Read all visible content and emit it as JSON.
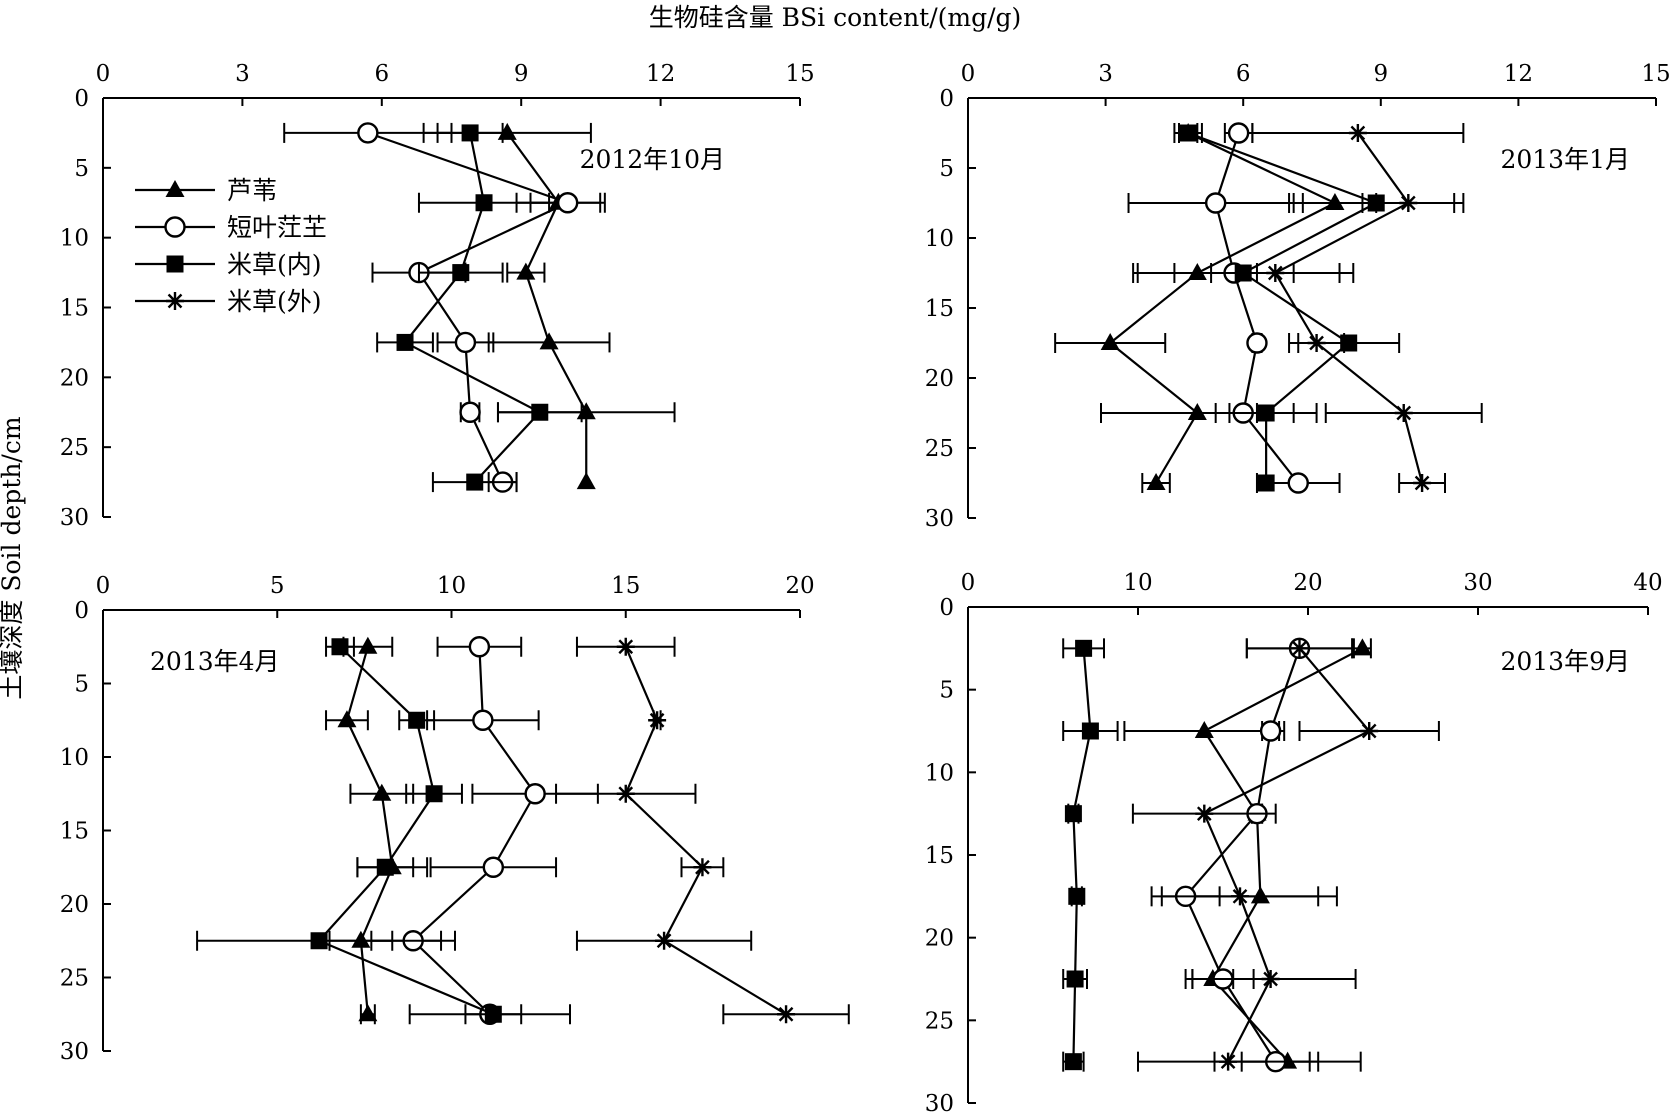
{
  "figure": {
    "x_axis_title": "生物硅含量 BSi content/(mg/g)",
    "y_axis_title": "土壤深度 Soil depth/cm"
  },
  "chart_data": [
    {
      "type": "scatter",
      "panel": "top-left",
      "title": "2012年10月",
      "xlim": [
        0,
        15
      ],
      "xticks": [
        0,
        3,
        6,
        9,
        12,
        15
      ],
      "ylim": [
        0,
        30
      ],
      "yticks": [
        0,
        5,
        10,
        15,
        20,
        25,
        30
      ],
      "x_axis_position": "top",
      "y_inverted": true,
      "legend": {
        "position": "top-left",
        "entries": [
          {
            "label": "芦苇",
            "marker": "triangle"
          },
          {
            "label": "短叶茳芏",
            "marker": "circle"
          },
          {
            "label": "米草(内)",
            "marker": "square"
          },
          {
            "label": "米草(外)",
            "marker": "star"
          }
        ]
      },
      "series": [
        {
          "name": "芦苇",
          "marker": "triangle",
          "depth": [
            2.5,
            7.5,
            12.5,
            17.5,
            22.5,
            27.5
          ],
          "values": [
            8.7,
            9.8,
            9.1,
            9.6,
            10.4,
            10.4
          ],
          "errors": [
            1.8,
            0.9,
            0.4,
            1.3,
            1.9,
            0
          ]
        },
        {
          "name": "短叶茳芏",
          "marker": "circle",
          "depth": [
            2.5,
            7.5,
            12.5,
            17.5,
            22.5,
            27.5
          ],
          "values": [
            5.7,
            10.0,
            6.8,
            7.8,
            7.9,
            8.6
          ],
          "errors": [
            1.8,
            0.8,
            1.0,
            0.6,
            0.2,
            0.3
          ]
        },
        {
          "name": "米草(内)",
          "marker": "square",
          "depth": [
            2.5,
            7.5,
            12.5,
            17.5,
            22.5,
            27.5
          ],
          "values": [
            7.9,
            8.2,
            7.7,
            6.5,
            9.4,
            8.0
          ],
          "errors": [
            0.7,
            1.4,
            0.9,
            0.6,
            0.9,
            0.9
          ]
        }
      ]
    },
    {
      "type": "scatter",
      "panel": "top-right",
      "title": "2013年1月",
      "xlim": [
        0,
        15
      ],
      "xticks": [
        0,
        3,
        6,
        9,
        12,
        15
      ],
      "ylim": [
        0,
        30
      ],
      "yticks": [
        0,
        5,
        10,
        15,
        20,
        25,
        30
      ],
      "x_axis_position": "top",
      "y_inverted": true,
      "series": [
        {
          "name": "芦苇",
          "marker": "triangle",
          "depth": [
            2.5,
            7.5,
            12.5,
            17.5,
            22.5,
            27.5
          ],
          "values": [
            4.8,
            8.0,
            5.0,
            3.1,
            5.0,
            4.1
          ],
          "errors": [
            0.2,
            0.9,
            1.3,
            1.2,
            2.1,
            0.3
          ]
        },
        {
          "name": "短叶茳芏",
          "marker": "circle",
          "depth": [
            2.5,
            7.5,
            12.5,
            17.5,
            22.5,
            27.5
          ],
          "values": [
            5.9,
            5.4,
            5.8,
            6.3,
            6.0,
            7.2
          ],
          "errors": [
            0.3,
            1.9,
            1.3,
            0.1,
            0.3,
            0.9
          ]
        },
        {
          "name": "米草(内)",
          "marker": "square",
          "depth": [
            2.5,
            7.5,
            12.5,
            17.5,
            22.5,
            27.5
          ],
          "values": [
            4.8,
            8.9,
            6.0,
            8.3,
            6.5,
            6.5
          ],
          "errors": [
            0.3,
            1.9,
            2.4,
            1.1,
            1.1,
            0
          ]
        },
        {
          "name": "米草(外)",
          "marker": "star",
          "depth": [
            2.5,
            7.5,
            12.5,
            17.5,
            22.5,
            27.5
          ],
          "values": [
            8.5,
            9.6,
            6.7,
            7.6,
            9.5,
            9.9
          ],
          "errors": [
            2.3,
            1.0,
            1.4,
            0.6,
            1.7,
            0.5
          ]
        }
      ]
    },
    {
      "type": "scatter",
      "panel": "bottom-left",
      "title": "2013年4月",
      "xlim": [
        0,
        20
      ],
      "xticks": [
        0,
        5,
        10,
        15,
        20
      ],
      "ylim": [
        0,
        30
      ],
      "yticks": [
        0,
        5,
        10,
        15,
        20,
        25,
        30
      ],
      "x_axis_position": "top",
      "y_inverted": true,
      "series": [
        {
          "name": "芦苇",
          "marker": "triangle",
          "depth": [
            2.5,
            7.5,
            12.5,
            17.5,
            22.5,
            27.5
          ],
          "values": [
            7.6,
            7.0,
            8.0,
            8.3,
            7.4,
            7.6
          ],
          "errors": [
            0.7,
            0.6,
            0.9,
            1.0,
            0.9,
            0.2
          ]
        },
        {
          "name": "短叶茳芏",
          "marker": "circle",
          "depth": [
            2.5,
            7.5,
            12.5,
            17.5,
            22.5,
            27.5
          ],
          "values": [
            10.8,
            10.9,
            12.4,
            11.2,
            8.9,
            11.1
          ],
          "errors": [
            1.2,
            1.6,
            1.8,
            1.8,
            1.2,
            2.3
          ]
        },
        {
          "name": "米草(内)",
          "marker": "square",
          "depth": [
            2.5,
            7.5,
            12.5,
            17.5,
            22.5,
            27.5
          ],
          "values": [
            6.8,
            9.0,
            9.5,
            8.1,
            6.2,
            11.2
          ],
          "errors": [
            0.4,
            0.5,
            0.8,
            0.8,
            3.5,
            0.8
          ]
        },
        {
          "name": "米草(外)",
          "marker": "star",
          "depth": [
            2.5,
            7.5,
            12.5,
            17.5,
            22.5,
            27.5
          ],
          "values": [
            15.0,
            15.9,
            15.0,
            17.2,
            16.1,
            19.6
          ],
          "errors": [
            1.4,
            0.1,
            2.0,
            0.6,
            2.5,
            1.8
          ]
        }
      ]
    },
    {
      "type": "scatter",
      "panel": "bottom-right",
      "title": "2013年9月",
      "xlim": [
        0,
        40
      ],
      "xticks": [
        0,
        10,
        20,
        30,
        40
      ],
      "ylim": [
        0,
        30
      ],
      "yticks": [
        0,
        5,
        10,
        15,
        20,
        25,
        30
      ],
      "x_axis_position": "top",
      "y_inverted": true,
      "series": [
        {
          "name": "芦苇",
          "marker": "triangle",
          "depth": [
            2.5,
            7.5,
            12.5,
            17.5,
            22.5,
            27.5
          ],
          "values": [
            23.2,
            13.9,
            17.0,
            17.2,
            14.4,
            18.8
          ],
          "errors": [
            0.5,
            4.7,
            0.3,
            4.5,
            1.2,
            4.3
          ]
        },
        {
          "name": "短叶茳芏",
          "marker": "circle",
          "depth": [
            2.5,
            7.5,
            12.5,
            17.5,
            22.5,
            27.5
          ],
          "values": [
            19.5,
            17.8,
            17.0,
            12.8,
            15.0,
            18.1
          ],
          "errors": [
            3.1,
            0.5,
            0.3,
            2.0,
            1.8,
            2.0
          ]
        },
        {
          "name": "米草(内)",
          "marker": "square",
          "depth": [
            2.5,
            7.5,
            12.5,
            17.5,
            22.5,
            27.5
          ],
          "values": [
            6.8,
            7.2,
            6.2,
            6.4,
            6.3,
            6.2
          ],
          "errors": [
            1.2,
            1.6,
            0.3,
            0.3,
            0.7,
            0.6
          ]
        },
        {
          "name": "米草(外)",
          "marker": "star",
          "depth": [
            2.5,
            7.5,
            12.5,
            17.5,
            22.5,
            27.5
          ],
          "values": [
            19.5,
            23.6,
            13.9,
            16.0,
            17.8,
            15.3
          ],
          "errors": [
            3.1,
            4.1,
            4.2,
            4.6,
            5.0,
            5.3
          ]
        }
      ]
    }
  ]
}
